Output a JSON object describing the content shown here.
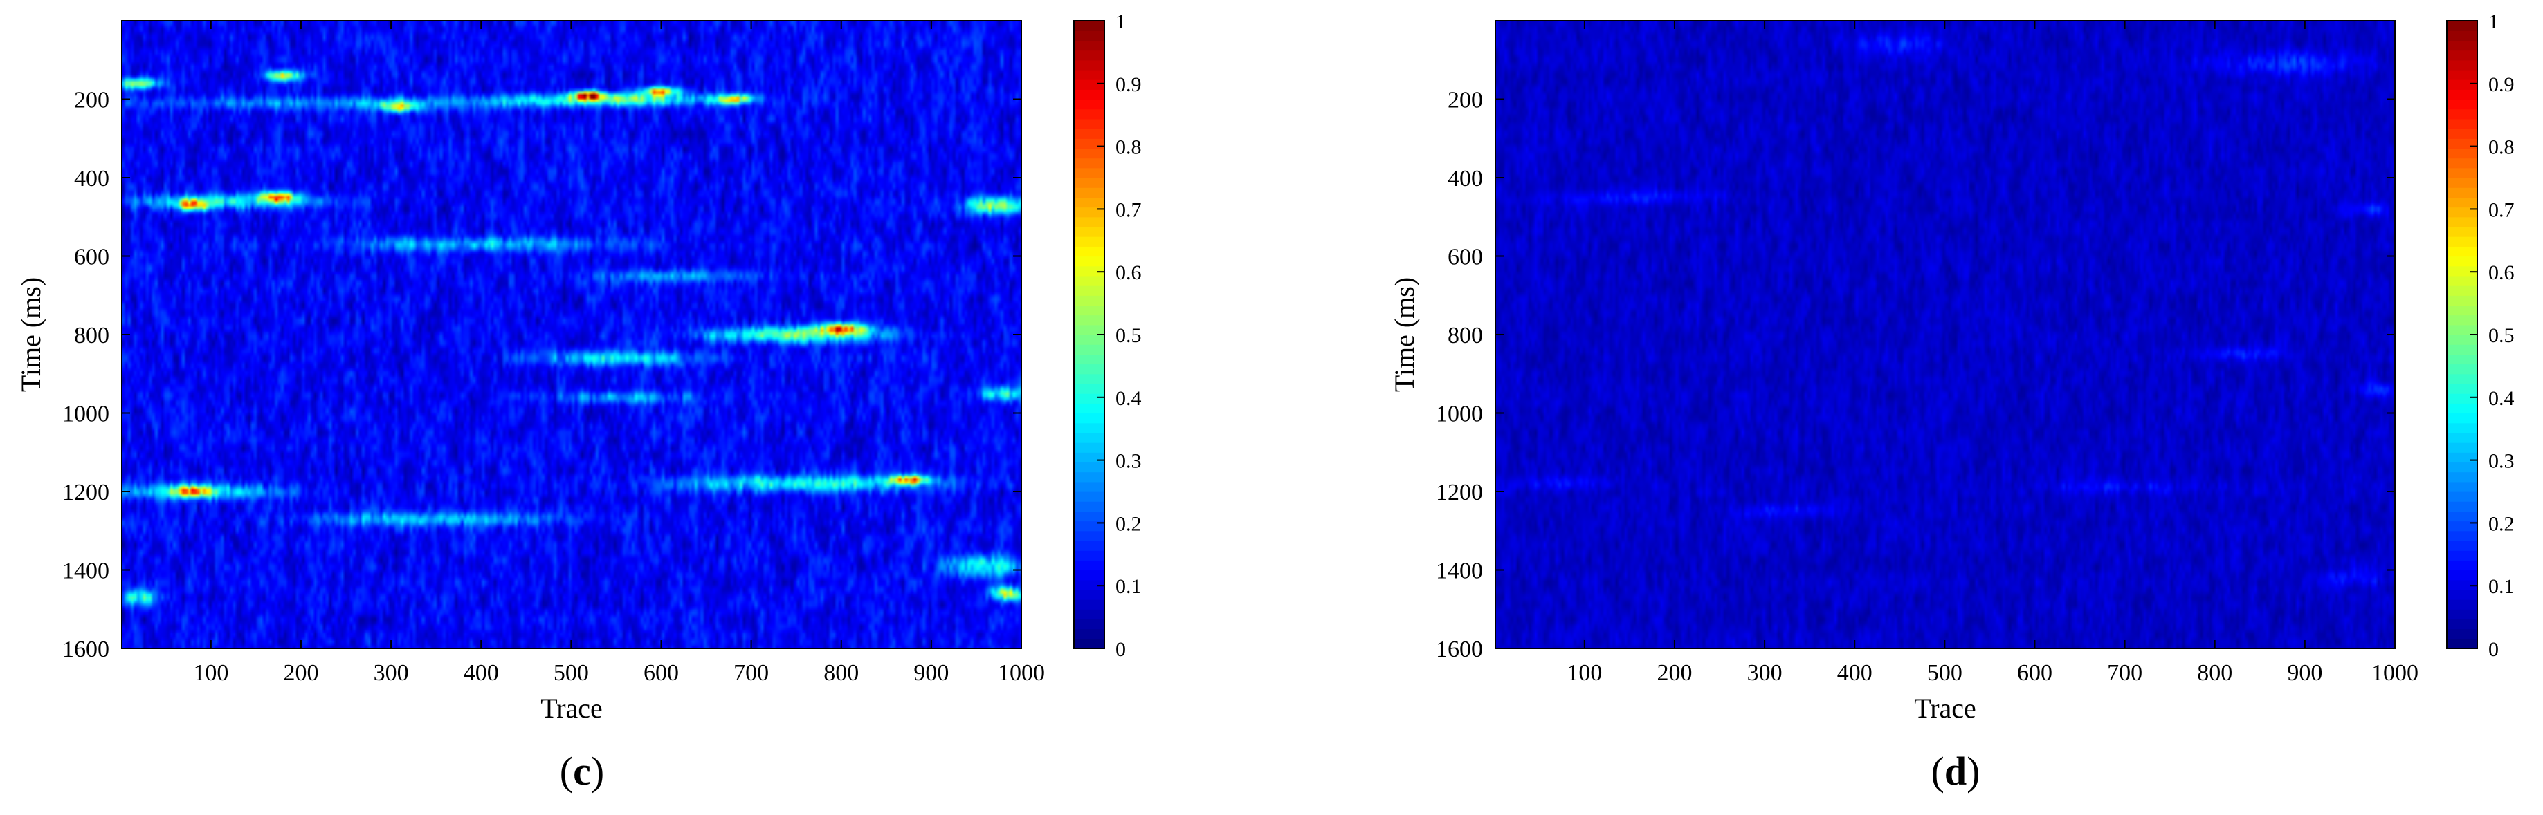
{
  "figure": {
    "panels": [
      {
        "letter": "c",
        "open": "(",
        "close": ")"
      },
      {
        "letter": "d",
        "open": "(",
        "close": ")"
      }
    ]
  },
  "chart_data": [
    {
      "type": "heatmap",
      "panel": "(c)",
      "title": "",
      "xlabel": "Trace",
      "ylabel": "Time (ms)",
      "xlim": [
        1,
        1000
      ],
      "ylim": [
        0,
        1600
      ],
      "y_reversed": true,
      "xticks": [
        100,
        200,
        300,
        400,
        500,
        600,
        700,
        800,
        900,
        1000
      ],
      "yticks": [
        200,
        400,
        600,
        800,
        1000,
        1200,
        1400,
        1600
      ],
      "colorbar": {
        "colormap": "jet",
        "range": [
          0,
          1
        ],
        "ticks": [
          0,
          0.1,
          0.2,
          0.3,
          0.4,
          0.5,
          0.6,
          0.7,
          0.8,
          0.9,
          1
        ]
      },
      "background_level": 0.12,
      "texture_level": 0.1,
      "features": [
        {
          "trace": 260,
          "time": 210,
          "trace_width": 520,
          "time_width": 35,
          "value": 0.3
        },
        {
          "trace": 550,
          "time": 200,
          "trace_width": 260,
          "time_width": 35,
          "value": 0.45
        },
        {
          "trace": 520,
          "time": 190,
          "trace_width": 40,
          "time_width": 25,
          "value": 0.72
        },
        {
          "trace": 600,
          "time": 180,
          "trace_width": 40,
          "time_width": 25,
          "value": 0.7
        },
        {
          "trace": 180,
          "time": 140,
          "trace_width": 40,
          "time_width": 30,
          "value": 0.6
        },
        {
          "trace": 20,
          "time": 160,
          "trace_width": 50,
          "time_width": 30,
          "value": 0.55
        },
        {
          "trace": 310,
          "time": 220,
          "trace_width": 40,
          "time_width": 30,
          "value": 0.55
        },
        {
          "trace": 680,
          "time": 200,
          "trace_width": 40,
          "time_width": 25,
          "value": 0.6
        },
        {
          "trace": 120,
          "time": 460,
          "trace_width": 240,
          "time_width": 40,
          "value": 0.4
        },
        {
          "trace": 80,
          "time": 470,
          "trace_width": 40,
          "time_width": 30,
          "value": 0.6
        },
        {
          "trace": 175,
          "time": 450,
          "trace_width": 40,
          "time_width": 30,
          "value": 0.7
        },
        {
          "trace": 400,
          "time": 570,
          "trace_width": 320,
          "time_width": 40,
          "value": 0.33
        },
        {
          "trace": 970,
          "time": 470,
          "trace_width": 70,
          "time_width": 50,
          "value": 0.55
        },
        {
          "trace": 620,
          "time": 650,
          "trace_width": 200,
          "time_width": 35,
          "value": 0.28
        },
        {
          "trace": 750,
          "time": 800,
          "trace_width": 220,
          "time_width": 45,
          "value": 0.5
        },
        {
          "trace": 800,
          "time": 785,
          "trace_width": 50,
          "time_width": 30,
          "value": 0.75
        },
        {
          "trace": 550,
          "time": 860,
          "trace_width": 200,
          "time_width": 40,
          "value": 0.35
        },
        {
          "trace": 560,
          "time": 960,
          "trace_width": 160,
          "time_width": 35,
          "value": 0.3
        },
        {
          "trace": 980,
          "time": 950,
          "trace_width": 60,
          "time_width": 40,
          "value": 0.4
        },
        {
          "trace": 90,
          "time": 1200,
          "trace_width": 180,
          "time_width": 45,
          "value": 0.42
        },
        {
          "trace": 80,
          "time": 1200,
          "trace_width": 40,
          "time_width": 30,
          "value": 0.6
        },
        {
          "trace": 350,
          "time": 1270,
          "trace_width": 300,
          "time_width": 40,
          "value": 0.32
        },
        {
          "trace": 760,
          "time": 1180,
          "trace_width": 300,
          "time_width": 45,
          "value": 0.42
        },
        {
          "trace": 875,
          "time": 1170,
          "trace_width": 50,
          "time_width": 25,
          "value": 0.7
        },
        {
          "trace": 960,
          "time": 1390,
          "trace_width": 100,
          "time_width": 60,
          "value": 0.4
        },
        {
          "trace": 985,
          "time": 1460,
          "trace_width": 35,
          "time_width": 40,
          "value": 0.62
        },
        {
          "trace": 20,
          "time": 1470,
          "trace_width": 50,
          "time_width": 50,
          "value": 0.4
        }
      ]
    },
    {
      "type": "heatmap",
      "panel": "(d)",
      "title": "",
      "xlabel": "Trace",
      "ylabel": "Time (ms)",
      "xlim": [
        1,
        1000
      ],
      "ylim": [
        0,
        1600
      ],
      "y_reversed": true,
      "xticks": [
        100,
        200,
        300,
        400,
        500,
        600,
        700,
        800,
        900,
        1000
      ],
      "yticks": [
        200,
        400,
        600,
        800,
        1000,
        1200,
        1400,
        1600
      ],
      "colorbar": {
        "colormap": "jet",
        "range": [
          0,
          1
        ],
        "ticks": [
          0,
          0.1,
          0.2,
          0.3,
          0.4,
          0.5,
          0.6,
          0.7,
          0.8,
          0.9,
          1
        ]
      },
      "background_level": 0.07,
      "texture_level": 0.05,
      "features": [
        {
          "trace": 880,
          "time": 110,
          "trace_width": 180,
          "time_width": 70,
          "value": 0.17
        },
        {
          "trace": 450,
          "time": 60,
          "trace_width": 120,
          "time_width": 60,
          "value": 0.15
        },
        {
          "trace": 150,
          "time": 450,
          "trace_width": 200,
          "time_width": 40,
          "value": 0.14
        },
        {
          "trace": 970,
          "time": 480,
          "trace_width": 60,
          "time_width": 40,
          "value": 0.16
        },
        {
          "trace": 830,
          "time": 850,
          "trace_width": 120,
          "time_width": 40,
          "value": 0.15
        },
        {
          "trace": 980,
          "time": 940,
          "trace_width": 50,
          "time_width": 40,
          "value": 0.17
        },
        {
          "trace": 80,
          "time": 1180,
          "trace_width": 120,
          "time_width": 40,
          "value": 0.14
        },
        {
          "trace": 320,
          "time": 1250,
          "trace_width": 120,
          "time_width": 40,
          "value": 0.13
        },
        {
          "trace": 700,
          "time": 1190,
          "trace_width": 200,
          "time_width": 40,
          "value": 0.13
        },
        {
          "trace": 960,
          "time": 1420,
          "trace_width": 80,
          "time_width": 50,
          "value": 0.14
        }
      ]
    }
  ]
}
